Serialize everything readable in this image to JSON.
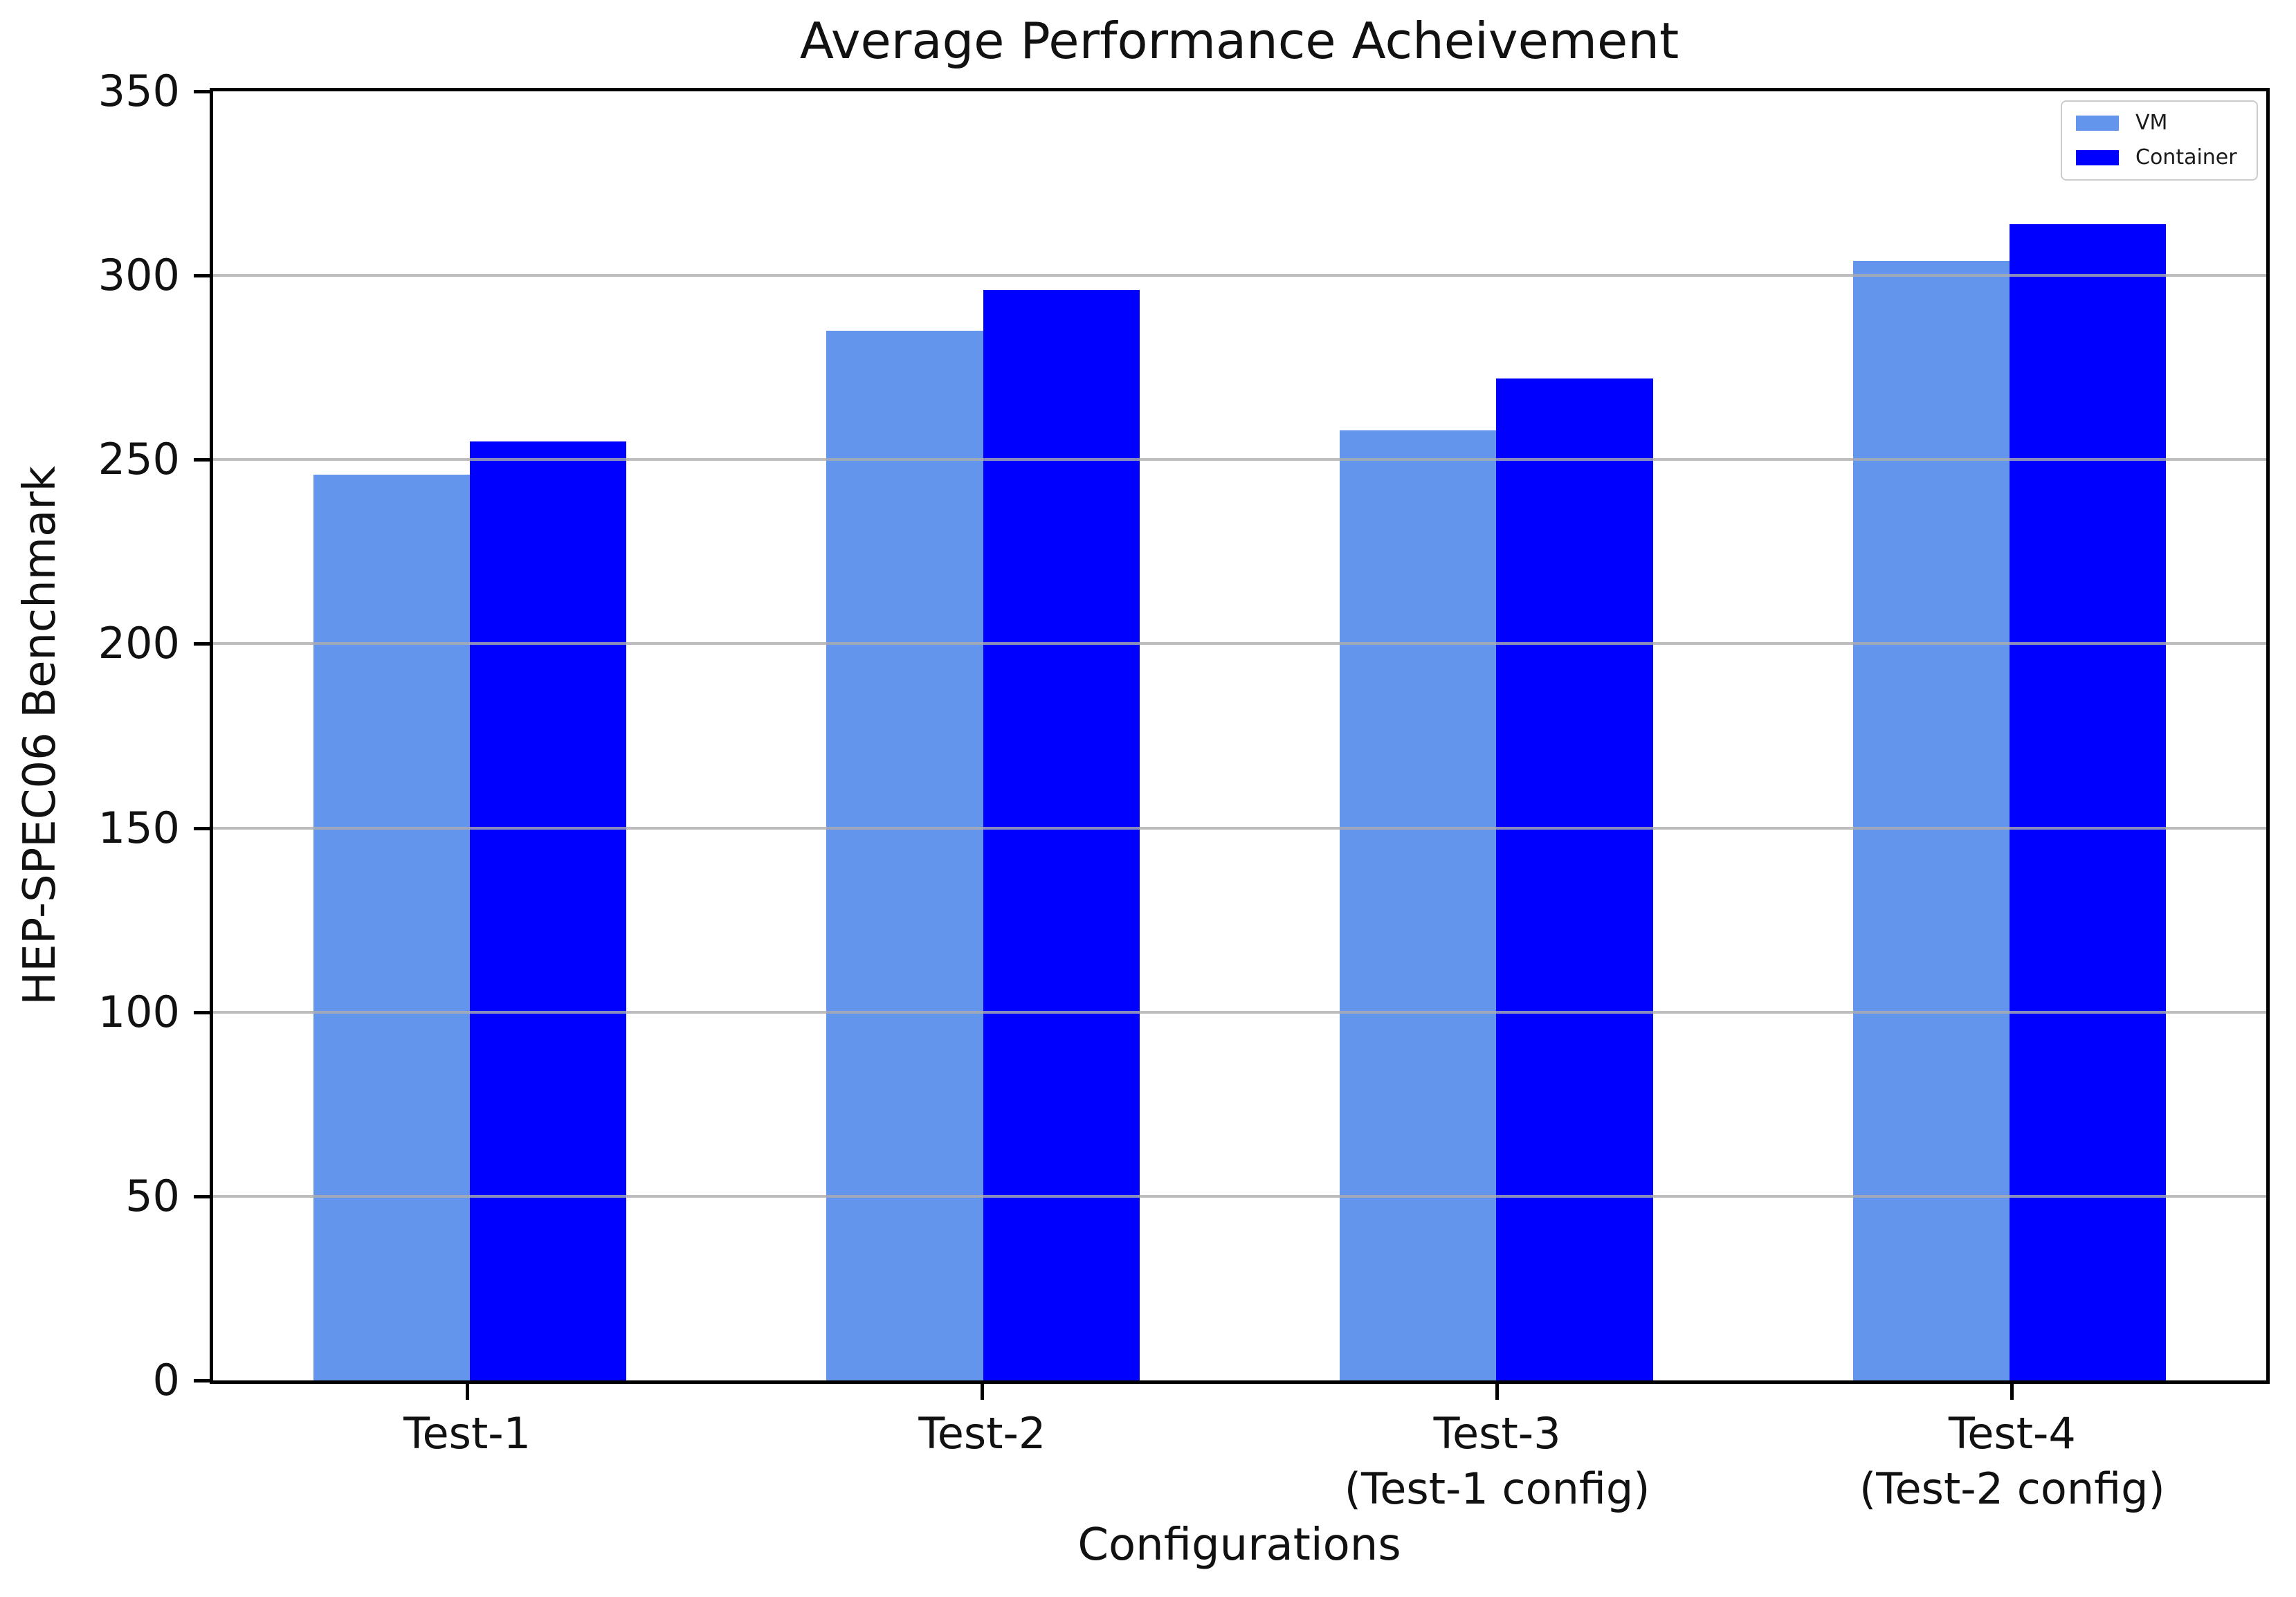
{
  "figure": {
    "background": "#ffffff",
    "spine_color": "#000000",
    "grid_color_rgba": "rgba(172,172,172,0.8)",
    "legend_border_color": "#cccccc"
  },
  "chart_data": {
    "type": "bar",
    "title": "Average Performance Acheivement",
    "xlabel": "Configurations",
    "ylabel": "HEP-SPEC06 Benchmark",
    "categories": [
      [
        "Test-1"
      ],
      [
        "Test-2"
      ],
      [
        "Test-3",
        "(Test-1 config)"
      ],
      [
        "Test-4",
        "(Test-2 config)"
      ]
    ],
    "series": [
      {
        "name": "VM",
        "color": "#6495ED",
        "values": [
          246,
          285,
          258,
          304
        ]
      },
      {
        "name": "Container",
        "color": "#0000FF",
        "values": [
          255,
          296,
          272,
          314
        ]
      }
    ],
    "ylim": [
      0,
      350
    ],
    "ytick_step": 50,
    "yticks": [
      0,
      50,
      100,
      150,
      200,
      250,
      300,
      350
    ],
    "grid": true,
    "grid_axis": "y",
    "legend_position": "upper right",
    "bar_width_fraction": 0.305
  }
}
